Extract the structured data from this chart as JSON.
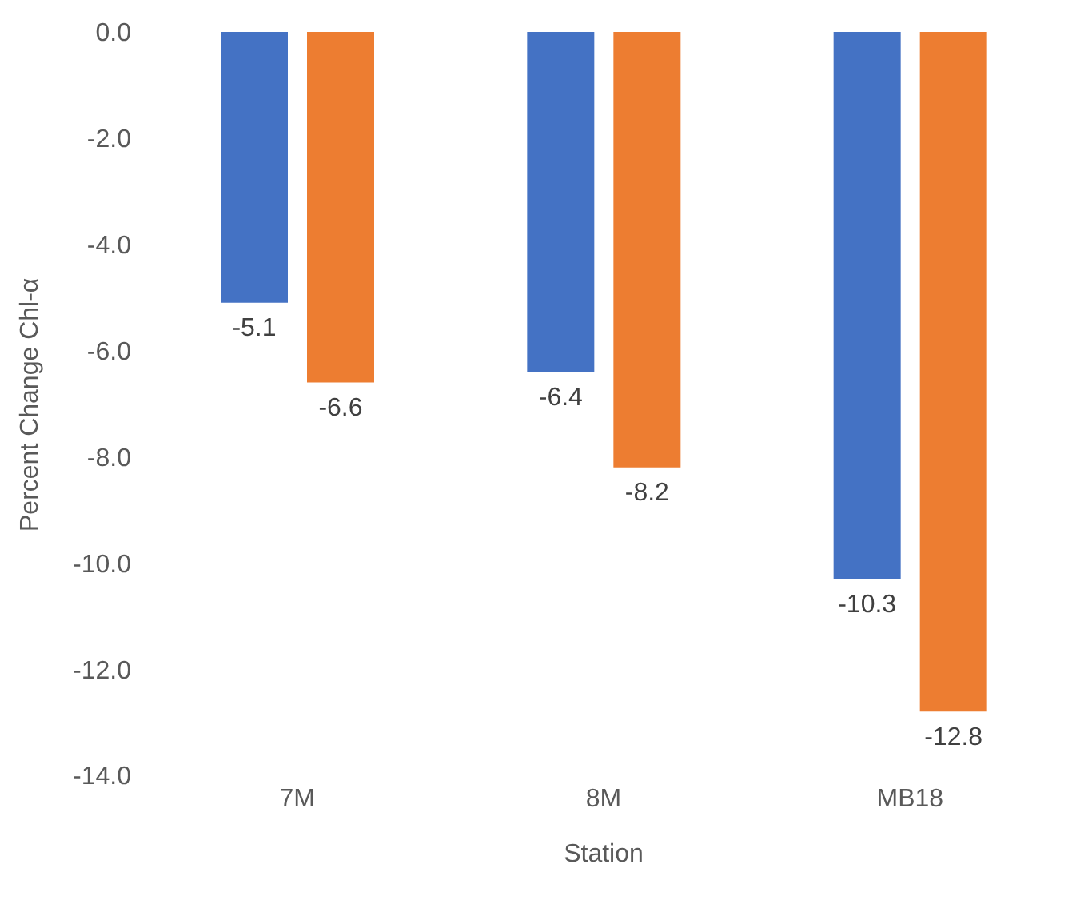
{
  "chart_data": {
    "type": "bar",
    "xlabel": "Station",
    "ylabel": "Percent Change Chl-α",
    "categories": [
      "7M",
      "8M",
      "MB18"
    ],
    "series": [
      {
        "color": "#4472c4",
        "values": [
          -5.1,
          -6.4,
          -10.3
        ]
      },
      {
        "color": "#ed7d31",
        "values": [
          -6.6,
          -8.2,
          -12.8
        ]
      }
    ],
    "ylim": [
      -14,
      0
    ],
    "yticks": [
      {
        "value": 0,
        "label": "0.0"
      },
      {
        "value": -2,
        "label": "-2.0"
      },
      {
        "value": -4,
        "label": "-4.0"
      },
      {
        "value": -6,
        "label": "-6.0"
      },
      {
        "value": -8,
        "label": "-8.0"
      },
      {
        "value": -10,
        "label": "-10.0"
      },
      {
        "value": -12,
        "label": "-12.0"
      },
      {
        "value": -14,
        "label": "-14.0"
      }
    ],
    "grid": false,
    "legend": false,
    "data_labels": true
  }
}
